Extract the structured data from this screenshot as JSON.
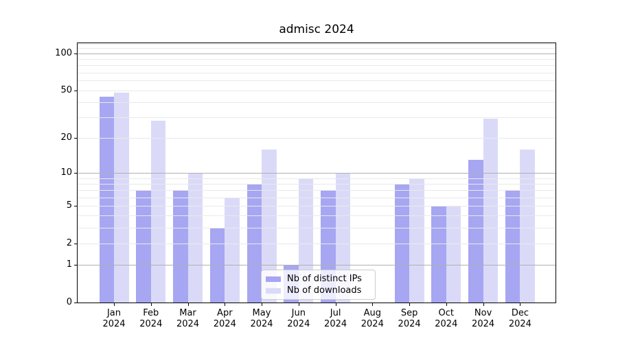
{
  "chart_data": {
    "type": "bar",
    "title": "admisc 2024",
    "categories": [
      "Jan",
      "Feb",
      "Mar",
      "Apr",
      "May",
      "Jun",
      "Jul",
      "Aug",
      "Sep",
      "Oct",
      "Nov",
      "Dec"
    ],
    "year_label": "2024",
    "series": [
      {
        "name": "Nb of distinct IPs",
        "color": "#a6a6f2",
        "values": [
          44,
          7,
          7,
          3,
          8,
          1,
          7,
          0,
          8,
          5,
          13,
          7
        ]
      },
      {
        "name": "Nb of downloads",
        "color": "#dadaf8",
        "values": [
          48,
          28,
          10,
          6,
          16,
          9,
          10,
          0,
          9,
          5,
          29,
          16
        ]
      }
    ],
    "scale": "log1p",
    "ylim": [
      0,
      122
    ],
    "y_ticks": [
      0,
      1,
      2,
      5,
      10,
      20,
      50,
      100
    ],
    "y_major_gridlines": [
      1,
      10,
      100
    ],
    "y_minor_gridlines": [
      2,
      3,
      4,
      5,
      6,
      7,
      8,
      9,
      20,
      30,
      40,
      50,
      60,
      70,
      80,
      90,
      110,
      120
    ],
    "grid_on_top_of_bars": true,
    "legend_position": "lower center",
    "colors": {
      "major_grid": "#b0b0b0",
      "minor_grid": "#e9e9e9",
      "axis": "#000000",
      "background": "#ffffff",
      "text": "#000000"
    }
  }
}
